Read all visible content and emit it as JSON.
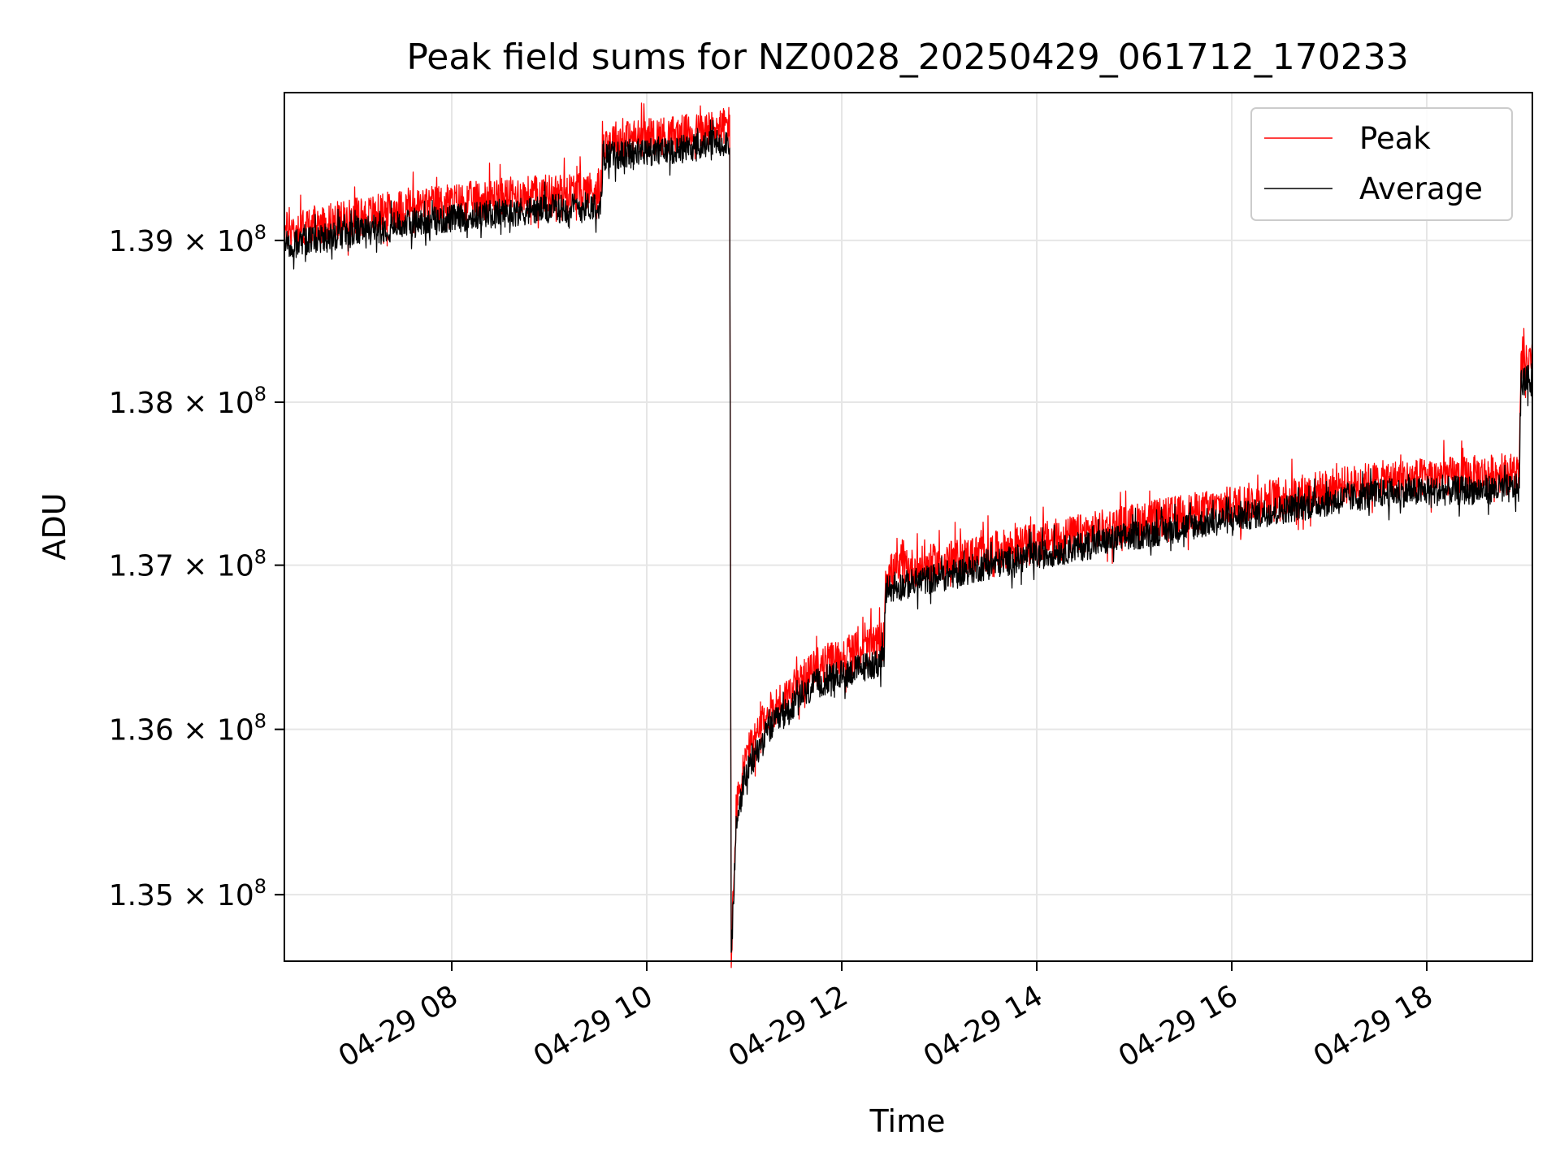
{
  "chart_data": {
    "type": "line",
    "title": "Peak field sums for NZ0028_20250429_061712_170233",
    "xlabel": "Time",
    "ylabel": "ADU",
    "x_axis": {
      "type": "datetime",
      "range": [
        "2025-04-29 06:17",
        "2025-04-29 19:05"
      ],
      "ticks": [
        {
          "value": "2025-04-29 08:00",
          "label": "04-29 08"
        },
        {
          "value": "2025-04-29 10:00",
          "label": "04-29 10"
        },
        {
          "value": "2025-04-29 12:00",
          "label": "04-29 12"
        },
        {
          "value": "2025-04-29 14:00",
          "label": "04-29 14"
        },
        {
          "value": "2025-04-29 16:00",
          "label": "04-29 16"
        },
        {
          "value": "2025-04-29 18:00",
          "label": "04-29 18"
        }
      ]
    },
    "y_axis": {
      "scale": "log",
      "range": [
        134600000,
        139920000
      ],
      "ticks": [
        {
          "value": 135000000,
          "mantissa": "1.35"
        },
        {
          "value": 136000000,
          "mantissa": "1.36"
        },
        {
          "value": 137000000,
          "mantissa": "1.37"
        },
        {
          "value": 138000000,
          "mantissa": "1.38"
        },
        {
          "value": 139000000,
          "mantissa": "1.39"
        }
      ],
      "tick_suffix": "× 10",
      "tick_exponent": "8"
    },
    "grid": true,
    "legend": {
      "position": "upper right"
    },
    "series": [
      {
        "name": "Peak",
        "color": "#ff0000",
        "noise": 120000,
        "points": [
          [
            "2025-04-29 06:17",
            139060000
          ],
          [
            "2025-04-29 07:30",
            139200000
          ],
          [
            "2025-04-29 08:30",
            139270000
          ],
          [
            "2025-04-29 09:32",
            139320000
          ],
          [
            "2025-04-29 09:33",
            139620000
          ],
          [
            "2025-04-29 10:30",
            139670000
          ],
          [
            "2025-04-29 10:51",
            139720000
          ],
          [
            "2025-04-29 10:52",
            134620000
          ],
          [
            "2025-04-29 10:55",
            135500000
          ],
          [
            "2025-04-29 11:00",
            135800000
          ],
          [
            "2025-04-29 11:15",
            136100000
          ],
          [
            "2025-04-29 11:45",
            136380000
          ],
          [
            "2025-04-29 12:26",
            136540000
          ],
          [
            "2025-04-29 12:27",
            136950000
          ],
          [
            "2025-04-29 13:30",
            137080000
          ],
          [
            "2025-04-29 15:00",
            137260000
          ],
          [
            "2025-04-29 16:30",
            137420000
          ],
          [
            "2025-04-29 17:30",
            137520000
          ],
          [
            "2025-04-29 18:57",
            137570000
          ],
          [
            "2025-04-29 18:58",
            138220000
          ],
          [
            "2025-04-29 19:05",
            138250000
          ]
        ]
      },
      {
        "name": "Average",
        "color": "#000000",
        "noise": 90000,
        "points": [
          [
            "2025-04-29 06:17",
            138970000
          ],
          [
            "2025-04-29 07:30",
            139100000
          ],
          [
            "2025-04-29 08:30",
            139170000
          ],
          [
            "2025-04-29 09:32",
            139220000
          ],
          [
            "2025-04-29 09:33",
            139520000
          ],
          [
            "2025-04-29 10:30",
            139580000
          ],
          [
            "2025-04-29 10:51",
            139620000
          ],
          [
            "2025-04-29 10:52",
            134600000
          ],
          [
            "2025-04-29 10:55",
            135400000
          ],
          [
            "2025-04-29 11:00",
            135700000
          ],
          [
            "2025-04-29 11:15",
            136000000
          ],
          [
            "2025-04-29 11:45",
            136280000
          ],
          [
            "2025-04-29 12:26",
            136420000
          ],
          [
            "2025-04-29 12:27",
            136850000
          ],
          [
            "2025-04-29 13:30",
            137000000
          ],
          [
            "2025-04-29 15:00",
            137180000
          ],
          [
            "2025-04-29 16:30",
            137340000
          ],
          [
            "2025-04-29 17:30",
            137440000
          ],
          [
            "2025-04-29 18:57",
            137470000
          ],
          [
            "2025-04-29 18:58",
            138120000
          ],
          [
            "2025-04-29 19:05",
            138150000
          ]
        ]
      }
    ]
  }
}
